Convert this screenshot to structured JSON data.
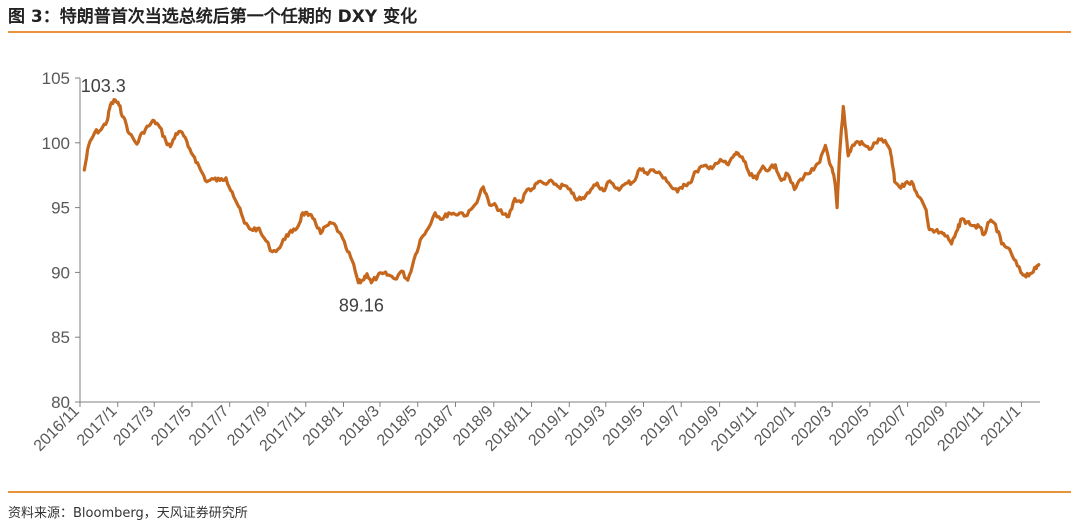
{
  "header": {
    "title": "图 3：特朗普首次当选总统后第一个任期的 DXY 变化"
  },
  "footer": {
    "source": "资料来源：Bloomberg，天风证券研究所"
  },
  "colors": {
    "line": "#c5671d",
    "accent_rule": "#e8923c",
    "axis": "#808080",
    "text": "#595959"
  },
  "chart_data": {
    "type": "line",
    "title": "",
    "xlabel": "",
    "ylabel": "",
    "ylim": [
      80,
      105
    ],
    "y_ticks": [
      "80",
      "85",
      "90",
      "95",
      "100",
      "105"
    ],
    "x_range": [
      "2016-11-01",
      "2021-01-31"
    ],
    "x_ticks": [
      "2016/11",
      "2017/1",
      "2017/3",
      "2017/5",
      "2017/7",
      "2017/9",
      "2017/11",
      "2018/1",
      "2018/3",
      "2018/5",
      "2018/7",
      "2018/9",
      "2018/11",
      "2019/1",
      "2019/3",
      "2019/5",
      "2019/7",
      "2019/9",
      "2019/11",
      "2020/1",
      "2020/3",
      "2020/5",
      "2020/7",
      "2020/9",
      "2020/11",
      "2021/1"
    ],
    "grid": false,
    "legend": "none",
    "series": [
      {
        "x": [
          "2016-11-08",
          "2016-11-15",
          "2016-11-25",
          "2016-12-05",
          "2016-12-15",
          "2016-12-20",
          "2016-12-28",
          "2017-01-03",
          "2017-01-10",
          "2017-01-20",
          "2017-02-01",
          "2017-02-10",
          "2017-02-20",
          "2017-03-01",
          "2017-03-10",
          "2017-03-20",
          "2017-03-27",
          "2017-04-05",
          "2017-04-15",
          "2017-04-25",
          "2017-05-05",
          "2017-05-15",
          "2017-05-25",
          "2017-06-05",
          "2017-06-15",
          "2017-06-25",
          "2017-07-05",
          "2017-07-15",
          "2017-07-25",
          "2017-08-05",
          "2017-08-15",
          "2017-08-25",
          "2017-09-08",
          "2017-09-20",
          "2017-10-01",
          "2017-10-10",
          "2017-10-20",
          "2017-10-27",
          "2017-11-05",
          "2017-11-15",
          "2017-11-25",
          "2017-12-05",
          "2017-12-15",
          "2017-12-25",
          "2018-01-05",
          "2018-01-15",
          "2018-01-25",
          "2018-02-01",
          "2018-02-08",
          "2018-02-15",
          "2018-02-25",
          "2018-03-05",
          "2018-03-15",
          "2018-03-25",
          "2018-04-05",
          "2018-04-15",
          "2018-04-25",
          "2018-05-05",
          "2018-05-15",
          "2018-05-29",
          "2018-06-10",
          "2018-06-20",
          "2018-06-30",
          "2018-07-10",
          "2018-07-20",
          "2018-08-01",
          "2018-08-15",
          "2018-08-25",
          "2018-09-05",
          "2018-09-15",
          "2018-09-25",
          "2018-10-05",
          "2018-10-15",
          "2018-10-25",
          "2018-11-05",
          "2018-11-12",
          "2018-11-25",
          "2018-12-05",
          "2018-12-15",
          "2018-12-25",
          "2019-01-05",
          "2019-01-15",
          "2019-01-25",
          "2019-02-05",
          "2019-02-15",
          "2019-02-25",
          "2019-03-05",
          "2019-03-15",
          "2019-03-25",
          "2019-04-05",
          "2019-04-15",
          "2019-04-25",
          "2019-05-05",
          "2019-05-15",
          "2019-05-23",
          "2019-06-05",
          "2019-06-15",
          "2019-06-25",
          "2019-07-05",
          "2019-07-15",
          "2019-07-25",
          "2019-08-05",
          "2019-08-15",
          "2019-08-25",
          "2019-09-05",
          "2019-09-15",
          "2019-09-25",
          "2019-10-01",
          "2019-10-10",
          "2019-10-20",
          "2019-10-31",
          "2019-11-10",
          "2019-11-20",
          "2019-11-30",
          "2019-12-10",
          "2019-12-20",
          "2019-12-31",
          "2020-01-10",
          "2020-01-20",
          "2020-01-31",
          "2020-02-10",
          "2020-02-19",
          "2020-02-28",
          "2020-03-05",
          "2020-03-09",
          "2020-03-13",
          "2020-03-19",
          "2020-03-23",
          "2020-03-27",
          "2020-04-01",
          "2020-04-10",
          "2020-04-20",
          "2020-04-30",
          "2020-05-10",
          "2020-05-20",
          "2020-05-31",
          "2020-06-05",
          "2020-06-10",
          "2020-06-20",
          "2020-06-30",
          "2020-07-10",
          "2020-07-20",
          "2020-07-31",
          "2020-08-05",
          "2020-08-15",
          "2020-08-25",
          "2020-09-01",
          "2020-09-10",
          "2020-09-20",
          "2020-09-25",
          "2020-10-05",
          "2020-10-15",
          "2020-10-25",
          "2020-11-01",
          "2020-11-10",
          "2020-11-20",
          "2020-11-30",
          "2020-12-10",
          "2020-12-20",
          "2020-12-31",
          "2021-01-06",
          "2021-01-15",
          "2021-01-25",
          "2021-01-29"
        ],
        "y": [
          97.9,
          99.8,
          100.8,
          101.0,
          101.7,
          102.9,
          103.3,
          102.9,
          102.0,
          100.7,
          99.9,
          100.8,
          101.3,
          101.7,
          101.2,
          100.1,
          99.7,
          100.7,
          100.8,
          99.7,
          98.9,
          97.9,
          97.0,
          97.2,
          97.1,
          97.3,
          96.2,
          95.1,
          93.8,
          93.3,
          93.4,
          92.7,
          91.6,
          91.9,
          92.9,
          93.1,
          93.6,
          94.6,
          94.4,
          94.1,
          93.0,
          93.6,
          93.8,
          93.1,
          91.9,
          90.9,
          89.2,
          89.4,
          89.9,
          89.2,
          89.7,
          89.9,
          89.8,
          89.5,
          90.1,
          89.4,
          91.0,
          92.5,
          93.2,
          94.6,
          94.1,
          94.6,
          94.5,
          94.6,
          94.4,
          95.2,
          96.6,
          95.2,
          95.1,
          94.5,
          94.3,
          95.7,
          95.4,
          96.4,
          96.5,
          97.0,
          96.8,
          97.0,
          96.6,
          96.7,
          96.1,
          95.6,
          95.7,
          96.4,
          96.9,
          96.3,
          97.0,
          96.6,
          96.5,
          96.9,
          97.0,
          98.0,
          97.7,
          97.9,
          97.7,
          97.3,
          96.6,
          96.2,
          96.8,
          96.9,
          97.8,
          98.2,
          98.0,
          98.4,
          98.6,
          98.3,
          99.1,
          99.2,
          98.6,
          97.5,
          97.2,
          98.2,
          97.9,
          98.3,
          97.1,
          97.6,
          96.4,
          97.2,
          97.6,
          97.9,
          98.5,
          99.8,
          98.2,
          97.1,
          95.0,
          99.1,
          102.8,
          101.0,
          99.0,
          99.6,
          100.1,
          99.9,
          99.5,
          100.0,
          100.3,
          99.7,
          98.9,
          97.0,
          96.5,
          97.0,
          96.8,
          95.8,
          94.8,
          93.3,
          93.2,
          93.1,
          92.8,
          92.2,
          93.3,
          94.1,
          93.9,
          93.6,
          93.5,
          92.9,
          93.9,
          93.7,
          92.2,
          91.9,
          91.0,
          90.0,
          89.8,
          89.9,
          90.3,
          90.6
        ]
      }
    ],
    "annotations": [
      {
        "text": "103.3",
        "x": "2016-12-28",
        "y": 103.3
      },
      {
        "text": "89.16",
        "x": "2018-02-15",
        "y": 89.16
      }
    ]
  }
}
